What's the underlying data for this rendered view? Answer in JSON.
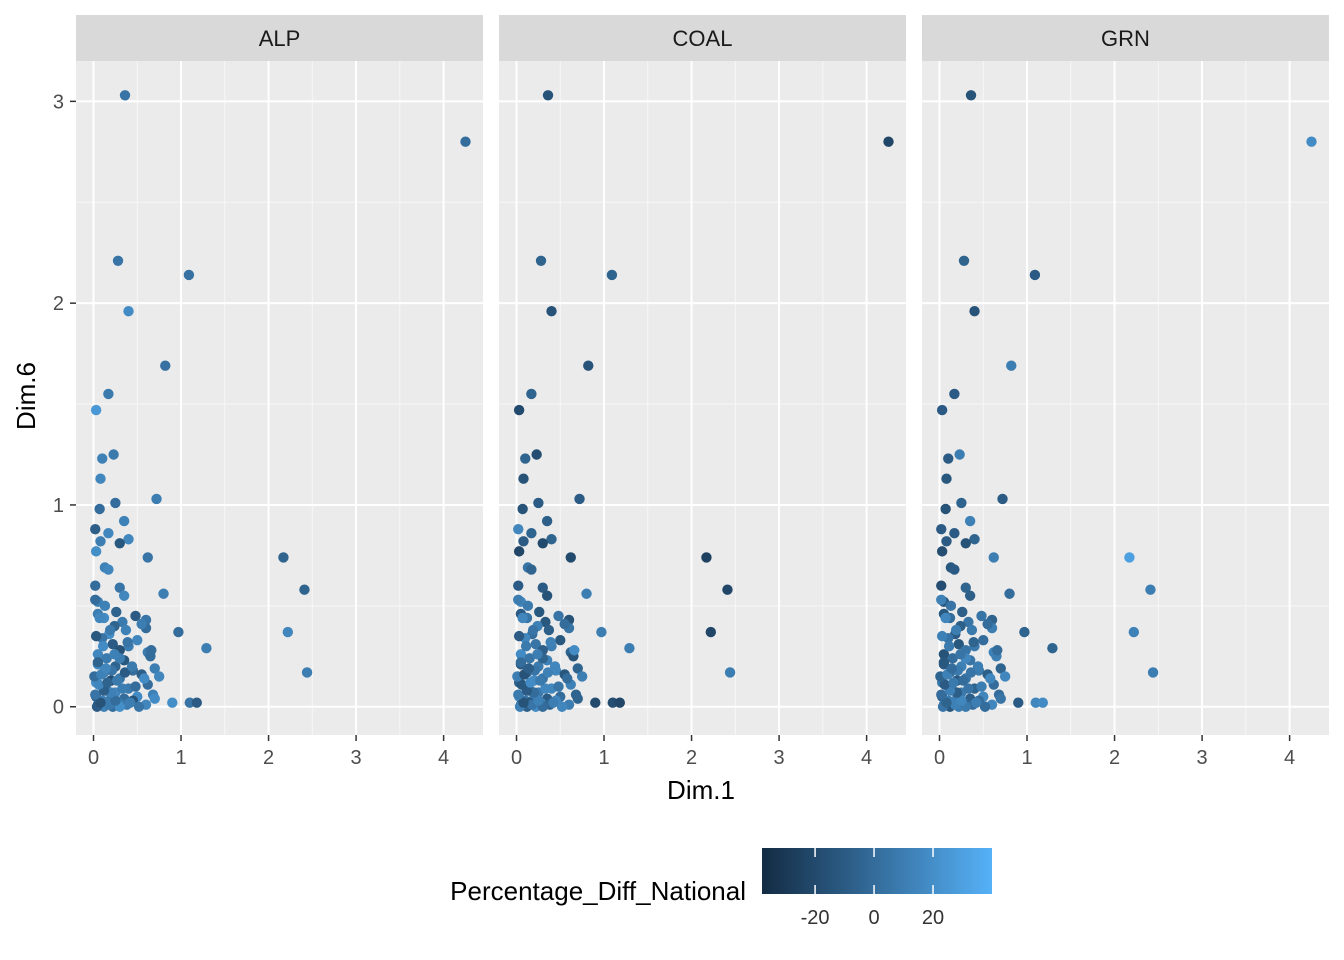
{
  "chart_data": {
    "type": "scatter",
    "xlabel": "Dim.1",
    "ylabel": "Dim.6",
    "xlim": [
      -0.2,
      4.45
    ],
    "ylim": [
      -0.14,
      3.2
    ],
    "x_ticks": [
      0,
      1,
      2,
      3,
      4
    ],
    "x_tick_labels": [
      "0",
      "1",
      "2",
      "3",
      "4"
    ],
    "y_ticks": [
      0,
      1,
      2,
      3
    ],
    "y_tick_labels": [
      "0",
      "1",
      "2",
      "3"
    ],
    "grid": true,
    "facets": [
      "ALP",
      "COAL",
      "GRN"
    ],
    "x": [
      0.36,
      4.25,
      0.28,
      1.09,
      0.4,
      0.82,
      0.17,
      0.03,
      0.23,
      0.1,
      0.08,
      0.25,
      0.72,
      0.07,
      0.35,
      0.02,
      0.17,
      0.4,
      0.3,
      0.08,
      0.03,
      0.62,
      0.13,
      0.17,
      0.02,
      0.3,
      0.8,
      0.35,
      0.05,
      0.48,
      0.6,
      0.6,
      0.97,
      0.05,
      0.12,
      0.33,
      0.24,
      0.37,
      1.29,
      0.62,
      0.18,
      0.1,
      0.5,
      0.22,
      0.4,
      0.3,
      0.05,
      0.65,
      0.15,
      0.35,
      0.05,
      0.25,
      0.7,
      0.45,
      0.12,
      0.55,
      0.75,
      0.3,
      0.2,
      0.03,
      0.62,
      0.1,
      0.4,
      0.15,
      0.25,
      0.68,
      0.03,
      0.5,
      0.2,
      0.35,
      0.1,
      0.45,
      0.15,
      0.28,
      0.05,
      0.6,
      0.38,
      0.22,
      0.12,
      0.04,
      0.3,
      0.52,
      0.18,
      0.08,
      0.42,
      0.25,
      0.7,
      0.02,
      0.2,
      0.12,
      0.33,
      0.48,
      0.06,
      0.16,
      0.27,
      0.58,
      0.01,
      0.09,
      0.36,
      0.21,
      0.14,
      0.44,
      0.05,
      0.3,
      0.24,
      0.66,
      0.11,
      0.39,
      0.03,
      0.19,
      0.55,
      0.07,
      0.26,
      0.13,
      0.02,
      0.9,
      1.1,
      1.18,
      2.17,
      2.22,
      2.41,
      2.44
    ],
    "y": [
      3.03,
      2.8,
      2.21,
      2.14,
      1.96,
      1.69,
      1.55,
      1.47,
      1.25,
      1.23,
      1.13,
      1.01,
      1.03,
      0.98,
      0.92,
      0.88,
      0.86,
      0.83,
      0.81,
      0.82,
      0.77,
      0.74,
      0.69,
      0.68,
      0.6,
      0.59,
      0.56,
      0.55,
      0.52,
      0.45,
      0.43,
      0.39,
      0.37,
      0.46,
      0.44,
      0.42,
      0.4,
      0.38,
      0.29,
      0.27,
      0.36,
      0.34,
      0.33,
      0.31,
      0.3,
      0.28,
      0.26,
      0.25,
      0.24,
      0.23,
      0.21,
      0.2,
      0.19,
      0.18,
      0.17,
      0.16,
      0.15,
      0.14,
      0.13,
      0.12,
      0.11,
      0.1,
      0.09,
      0.08,
      0.07,
      0.06,
      0.05,
      0.05,
      0.04,
      0.04,
      0.03,
      0.03,
      0.02,
      0.02,
      0.01,
      0.01,
      0.01,
      0.0,
      0.0,
      0.0,
      0.0,
      0.0,
      0.01,
      0.02,
      0.02,
      0.03,
      0.04,
      0.06,
      0.07,
      0.08,
      0.09,
      0.1,
      0.11,
      0.12,
      0.13,
      0.14,
      0.15,
      0.16,
      0.17,
      0.18,
      0.19,
      0.2,
      0.22,
      0.24,
      0.26,
      0.28,
      0.3,
      0.32,
      0.35,
      0.38,
      0.41,
      0.44,
      0.47,
      0.5,
      0.53,
      0.02,
      0.02,
      0.02,
      0.74,
      0.37,
      0.58,
      0.17
    ],
    "series": [
      {
        "name": "ALP",
        "color_values": [
          5,
          0,
          5,
          3,
          18,
          3,
          8,
          25,
          8,
          12,
          15,
          0,
          10,
          0,
          12,
          -8,
          15,
          15,
          -12,
          10,
          20,
          5,
          12,
          15,
          0,
          5,
          10,
          15,
          12,
          -10,
          5,
          0,
          0,
          10,
          18,
          8,
          -5,
          12,
          10,
          8,
          20,
          5,
          15,
          -10,
          10,
          -15,
          15,
          0,
          8,
          -12,
          18,
          -5,
          10,
          0,
          12,
          -8,
          15,
          5,
          -18,
          20,
          0,
          10,
          8,
          -5,
          15,
          12,
          -10,
          18,
          5,
          0,
          12,
          -15,
          8,
          10,
          -5,
          15,
          8,
          0,
          12,
          -10,
          20,
          5,
          8,
          -15,
          10,
          0,
          18,
          5,
          12,
          -8,
          10,
          0,
          15,
          -5,
          8,
          18,
          0,
          12,
          -10,
          5,
          15,
          8,
          -5,
          10,
          12,
          0,
          18,
          5,
          -12,
          8,
          10,
          15,
          -5,
          12,
          0,
          20,
          5,
          -10,
          -5,
          15,
          -5,
          10
        ]
      },
      {
        "name": "COAL",
        "color_values": [
          -15,
          -22,
          -5,
          -5,
          -15,
          -15,
          -5,
          -20,
          -18,
          -5,
          -15,
          -10,
          -10,
          -15,
          -8,
          15,
          -5,
          -5,
          -20,
          -10,
          -22,
          -20,
          5,
          -5,
          -10,
          -10,
          10,
          -15,
          15,
          5,
          -15,
          5,
          10,
          -10,
          5,
          -12,
          12,
          -8,
          10,
          -5,
          0,
          15,
          -12,
          5,
          10,
          -8,
          18,
          -15,
          5,
          12,
          -10,
          8,
          -5,
          15,
          0,
          -12,
          10,
          5,
          18,
          -8,
          12,
          0,
          15,
          -18,
          8,
          -5,
          20,
          0,
          12,
          -10,
          5,
          15,
          -12,
          8,
          0,
          10,
          -5,
          18,
          -8,
          12,
          0,
          15,
          5,
          -15,
          10,
          12,
          -5,
          8,
          0,
          -10,
          15,
          5,
          -12,
          18,
          8,
          0,
          10,
          -15,
          12,
          5,
          -8,
          15,
          0,
          -5,
          10,
          18,
          8,
          12,
          -10,
          5,
          0,
          15,
          -12,
          8,
          10,
          -20,
          -18,
          -22,
          -25,
          -22,
          -22,
          10
        ]
      },
      {
        "name": "GRN",
        "color_values": [
          -15,
          18,
          -5,
          -10,
          -15,
          10,
          -10,
          -10,
          10,
          -10,
          -12,
          -5,
          -10,
          -15,
          12,
          -10,
          -10,
          -5,
          -15,
          -10,
          -18,
          10,
          -12,
          -10,
          -18,
          -5,
          0,
          -8,
          -12,
          5,
          -5,
          10,
          -5,
          -12,
          0,
          5,
          -8,
          8,
          -5,
          12,
          -10,
          5,
          0,
          -12,
          8,
          5,
          -15,
          10,
          0,
          5,
          -10,
          12,
          -5,
          8,
          0,
          -8,
          15,
          5,
          -12,
          8,
          0,
          10,
          -5,
          12,
          8,
          0,
          -10,
          15,
          5,
          -8,
          10,
          0,
          12,
          -5,
          8,
          15,
          0,
          10,
          -12,
          5,
          8,
          0,
          12,
          -5,
          10,
          15,
          5,
          0,
          -8,
          12,
          5,
          10,
          -10,
          8,
          0,
          15,
          -5,
          12,
          5,
          8,
          0,
          10,
          -12,
          15,
          5,
          0,
          8,
          -5,
          12,
          10,
          0,
          15,
          -8,
          5,
          12,
          -10,
          15,
          18,
          30,
          12,
          10,
          10
        ]
      }
    ],
    "color_scale": {
      "title": "Percentage_Diff_National",
      "low_color": "#132B43",
      "high_color": "#56B1F7",
      "limits": [
        -38,
        40
      ],
      "ticks": [
        -20,
        0,
        20
      ],
      "tick_labels": [
        "-20",
        "0",
        "20"
      ]
    },
    "legend_position": "bottom"
  }
}
